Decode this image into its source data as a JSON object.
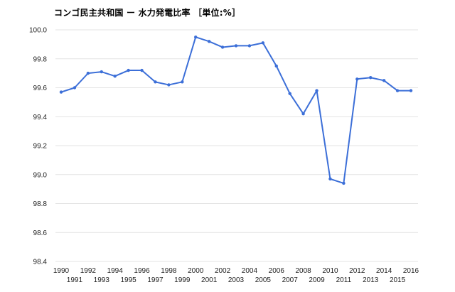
{
  "chart_data": {
    "type": "line",
    "title": "コンゴ民主共和国 ー 水力発電比率 ［単位:%］",
    "x": [
      1990,
      1991,
      1992,
      1993,
      1994,
      1995,
      1996,
      1997,
      1998,
      1999,
      2000,
      2001,
      2002,
      2003,
      2004,
      2005,
      2006,
      2007,
      2008,
      2009,
      2010,
      2011,
      2012,
      2013,
      2014,
      2015,
      2016
    ],
    "series": [
      {
        "values": [
          99.57,
          99.6,
          99.7,
          99.71,
          99.68,
          99.72,
          99.72,
          99.64,
          99.62,
          99.64,
          99.95,
          99.92,
          99.88,
          99.89,
          99.89,
          99.91,
          99.75,
          99.56,
          99.42,
          99.58,
          98.97,
          98.94,
          99.66,
          99.67,
          99.65,
          99.58,
          99.58
        ]
      }
    ],
    "ylim": [
      98.4,
      100.0
    ],
    "yticks": [
      "100.0",
      "99.8",
      "99.6",
      "99.4",
      "99.2",
      "99.0",
      "98.8",
      "98.6",
      "98.4"
    ],
    "xticks": [
      "1990",
      "1991",
      "1992",
      "1993",
      "1994",
      "1995",
      "1996",
      "1997",
      "1998",
      "1999",
      "2000",
      "2001",
      "2002",
      "2003",
      "2004",
      "2005",
      "2006",
      "2007",
      "2008",
      "2009",
      "2010",
      "2011",
      "2012",
      "2013",
      "2014",
      "2015",
      "2016"
    ],
    "xlabel": "",
    "ylabel": "",
    "grid": true,
    "legend": "none",
    "line_color": "#3c6fd8",
    "grid_color": "#e3e3e3"
  }
}
